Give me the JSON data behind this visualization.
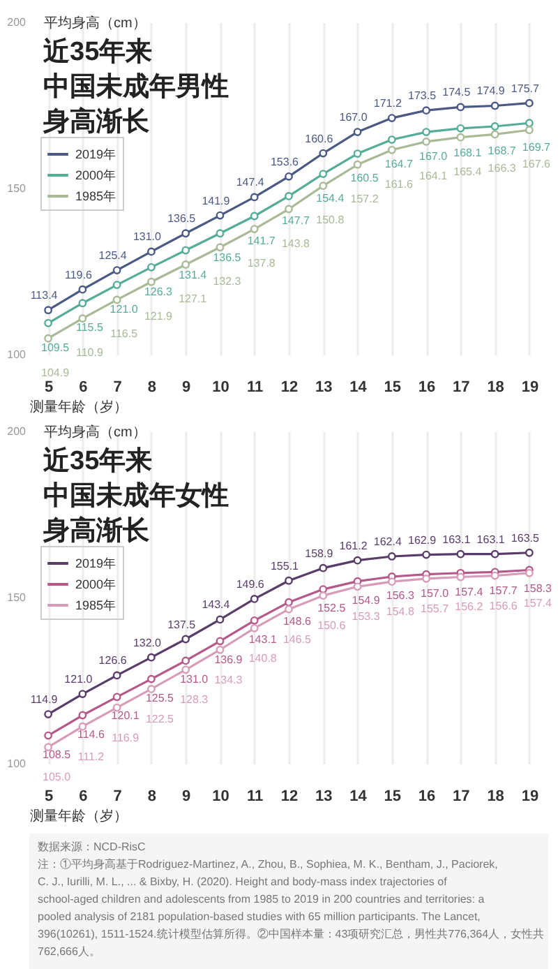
{
  "chart_data": [
    {
      "type": "line",
      "title": "近35年来中国未成年男性身高渐长",
      "ylabel": "平均身高（cm）",
      "xlabel": "测量年龄（岁）",
      "categories": [
        "5",
        "6",
        "7",
        "8",
        "9",
        "10",
        "11",
        "12",
        "13",
        "14",
        "15",
        "16",
        "17",
        "18",
        "19"
      ],
      "series": [
        {
          "name": "2019年",
          "color": "#4a5a85",
          "values": [
            113.4,
            119.6,
            125.4,
            131.0,
            136.5,
            141.9,
            147.4,
            153.6,
            160.6,
            167.0,
            171.2,
            173.5,
            174.5,
            174.9,
            175.7
          ],
          "value_labels": [
            "113.4",
            "119.6",
            "125.4",
            "131.0",
            "136.5",
            "141.9",
            "147.4",
            "153.6",
            "160.6",
            "167.0",
            "171.2",
            "173.5",
            "174.5",
            "174.9",
            "175.7"
          ]
        },
        {
          "name": "2000年",
          "color": "#55ad98",
          "values": [
            109.5,
            115.5,
            121.0,
            126.3,
            131.4,
            136.5,
            141.7,
            147.7,
            154.4,
            160.5,
            164.7,
            167.0,
            168.1,
            168.7,
            169.7
          ],
          "value_labels": [
            "109.5",
            "115.5",
            "121.0",
            "126.3",
            "131.4",
            "136.5",
            "141.7",
            "147.7",
            "154.4",
            "160.5",
            "164.7",
            "167.0",
            "168.1",
            "168.7",
            "169.7"
          ]
        },
        {
          "name": "1985年",
          "color": "#a8ba96",
          "values": [
            104.9,
            110.9,
            116.5,
            121.9,
            127.1,
            132.3,
            137.8,
            143.8,
            150.8,
            157.2,
            161.6,
            164.1,
            165.4,
            166.3,
            167.6
          ],
          "value_labels": [
            "104.9",
            "110.9",
            "116.5",
            "121.9",
            "127.1",
            "132.3",
            "137.8",
            "143.8",
            "150.8",
            "157.2",
            "161.6",
            "164.1",
            "165.4",
            "166.3",
            "167.6"
          ]
        }
      ],
      "ylim": [
        100,
        200
      ],
      "yticks": [
        100,
        150,
        200
      ],
      "grid": "x",
      "legend": "top left",
      "marker": "circle",
      "line_style": "solid"
    },
    {
      "type": "line",
      "title": "近35年来中国未成年女性身高渐长",
      "ylabel": "平均身高（cm）",
      "xlabel": "测量年龄（岁）",
      "categories": [
        "5",
        "6",
        "7",
        "8",
        "9",
        "10",
        "11",
        "12",
        "13",
        "14",
        "15",
        "16",
        "17",
        "18",
        "19"
      ],
      "series": [
        {
          "name": "2019年",
          "color": "#5a3c6b",
          "values": [
            114.9,
            121.0,
            126.6,
            132.0,
            137.5,
            143.4,
            149.6,
            155.1,
            158.9,
            161.2,
            162.4,
            162.9,
            163.1,
            163.1,
            163.5
          ],
          "value_labels": [
            "114.9",
            "121.0",
            "126.6",
            "132.0",
            "137.5",
            "143.4",
            "149.6",
            "155.1",
            "158.9",
            "161.2",
            "162.4",
            "162.9",
            "163.1",
            "163.1",
            "163.5"
          ]
        },
        {
          "name": "2000年",
          "color": "#b5588a",
          "values": [
            108.5,
            114.6,
            120.1,
            125.5,
            131.0,
            136.9,
            143.1,
            148.6,
            152.5,
            154.9,
            156.3,
            157.0,
            157.4,
            157.7,
            158.3
          ],
          "value_labels": [
            "108.5",
            "114.6",
            "120.1",
            "125.5",
            "131.0",
            "136.9",
            "143.1",
            "148.6",
            "152.5",
            "154.9",
            "156.3",
            "157.0",
            "157.4",
            "157.7",
            "158.3"
          ]
        },
        {
          "name": "1985年",
          "color": "#d79cba",
          "values": [
            105.0,
            111.2,
            116.9,
            122.5,
            128.3,
            134.3,
            140.8,
            146.5,
            150.6,
            153.3,
            154.8,
            155.7,
            156.2,
            156.6,
            157.4
          ],
          "value_labels": [
            "105.0",
            "111.2",
            "116.9",
            "122.5",
            "128.3",
            "134.3",
            "140.8",
            "146.5",
            "150.6",
            "153.3",
            "154.8",
            "155.7",
            "156.2",
            "156.6",
            "157.4"
          ]
        }
      ],
      "ylim": [
        100,
        200
      ],
      "yticks": [
        100,
        150,
        200
      ],
      "grid": "x",
      "legend": "top left",
      "marker": "circle",
      "line_style": "solid",
      "annotations": [
        "数据来源：NCD-RisC",
        "注：①平均身高基于Rodriguez-Martinez, A., Zhou, B., Sophiea, M. K., Bentham, J., Paciorek, C. J., Iurilli, M. L., ... & Bixby, H. (2020). Height and body-mass index trajectories of school-aged children and adolescents from 1985 to 2019 in 200 countries and territories: a pooled analysis of 2181 population-based studies with 65 million participants. The Lancet, 396(10261), 1511-1524.统计模型估算所得。②中国样本量：43项研究汇总，男性共776,364人，女性共762,666人。"
      ]
    }
  ]
}
